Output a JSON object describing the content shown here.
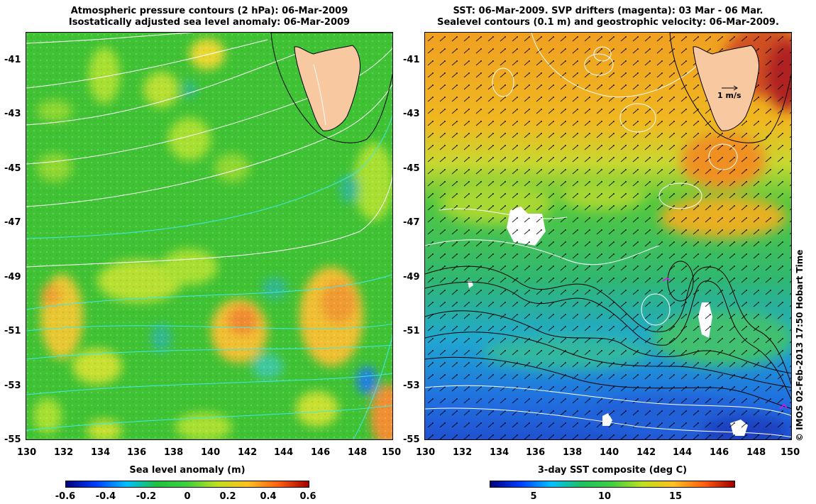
{
  "left_panel": {
    "title_line1": "Atmospheric pressure contours (2 hPa): 06-Mar-2009",
    "title_line2": "Isostatically adjusted sea level anomaly: 06-Mar-2009",
    "colorbar_title": "Sea level anomaly (m)",
    "colorbar_labels": [
      "-0.6",
      "-0.4",
      "-0.2",
      "0",
      "0.2",
      "0.4",
      "0.6"
    ]
  },
  "right_panel": {
    "title_line1": "SST: 06-Mar-2009. SVP drifters (magenta): 03 Mar - 06 Mar.",
    "title_line2": "Sealevel contours (0.1 m) and geostrophic velocity: 06-Mar-2009.",
    "velocity_scale_label": "1 m/s",
    "colorbar_title": "3-day SST composite (deg C)",
    "colorbar_labels": [
      "5",
      "10",
      "15"
    ]
  },
  "axes": {
    "lon_ticks": [
      "130",
      "132",
      "134",
      "136",
      "138",
      "140",
      "142",
      "144",
      "146",
      "148",
      "150"
    ],
    "lat_ticks": [
      "-41",
      "-43",
      "-45",
      "-47",
      "-49",
      "-51",
      "-53",
      "-55"
    ]
  },
  "credit": "© IMOS 02-Feb-2013 17:50 Hobart Time",
  "colors": {
    "land": "#f8c8a0",
    "pressure_contour": "#ffffff",
    "pressure_contour_alt": "#40e8e8",
    "sealevel_contour_dark": "#000000",
    "sealevel_contour_light": "#ffffff",
    "drifter": "#ff00ff"
  }
}
